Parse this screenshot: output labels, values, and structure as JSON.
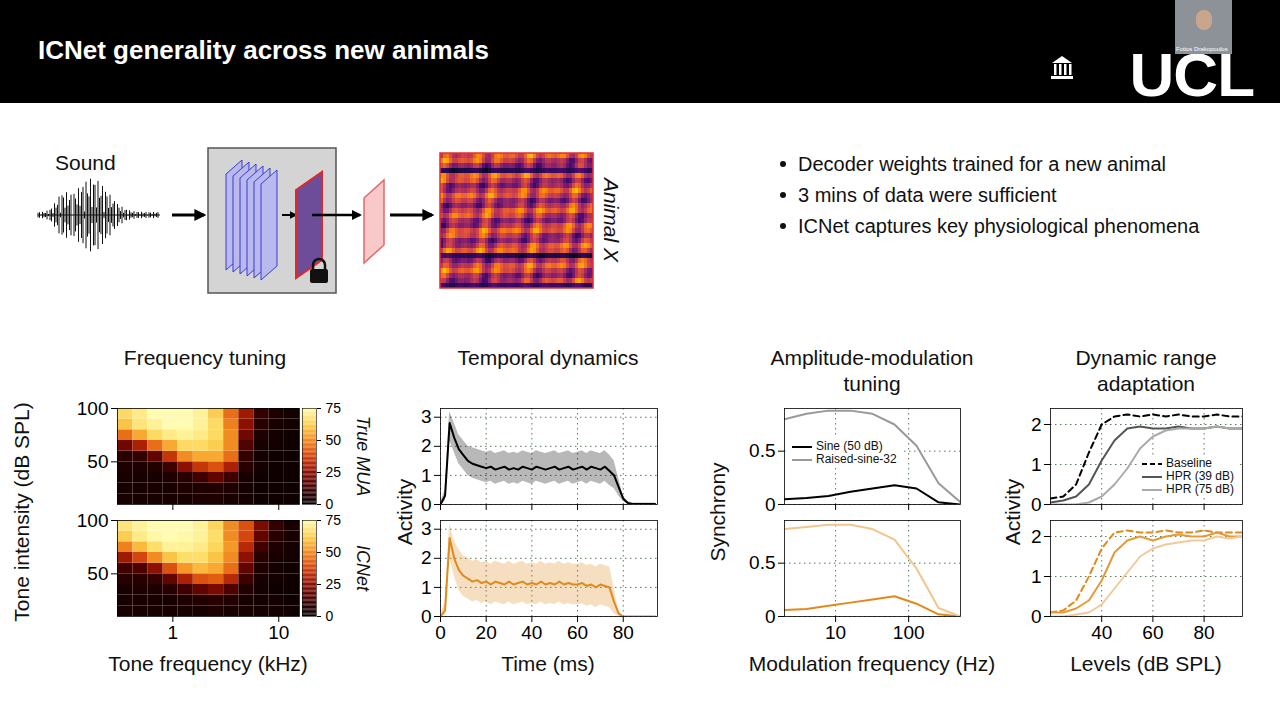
{
  "header": {
    "title": "ICNet generality across new animals",
    "logo": "UCL",
    "presenter": "Fotios Drakopoulos"
  },
  "diagram": {
    "input": "Sound",
    "output": "Animal X"
  },
  "bullets": [
    "Decoder weights trained for a new animal",
    "3 mins of data were sufficient",
    "ICNet captures key physiological phenomena"
  ],
  "chart_data": [
    {
      "type": "heatmap",
      "title": "Frequency tuning",
      "x_label": "Tone frequency (kHz)",
      "y_label": "Tone intensity (dB SPL)",
      "log": "x",
      "xlim": [
        0.3,
        15.7
      ],
      "xticks": [
        1,
        10
      ],
      "ylim": [
        10,
        100
      ],
      "yticks": [
        50,
        100
      ],
      "x_bins": [
        0.3,
        0.42,
        0.58,
        0.81,
        1.12,
        1.56,
        2.17,
        3.02,
        4.2,
        5.84,
        8.12,
        11.3,
        15.7
      ],
      "y_bins": [
        10,
        20,
        30,
        40,
        50,
        60,
        70,
        80,
        90,
        100
      ],
      "colorbar": {
        "range": [
          0,
          75
        ],
        "ticks": [
          0,
          25,
          50,
          75
        ]
      },
      "panels": [
        {
          "name": "True MUA",
          "tick_labels": "y",
          "cells": [
            [
              5,
              5,
              5,
              5,
              5,
              6,
              6,
              5,
              4,
              3,
              3,
              3
            ],
            [
              5,
              5,
              5,
              5,
              6,
              6,
              7,
              6,
              4,
              3,
              3,
              3
            ],
            [
              5,
              5,
              5,
              6,
              8,
              12,
              18,
              12,
              5,
              3,
              3,
              3
            ],
            [
              6,
              6,
              7,
              12,
              25,
              35,
              40,
              30,
              8,
              4,
              3,
              3
            ],
            [
              8,
              10,
              18,
              35,
              50,
              55,
              55,
              45,
              10,
              4,
              3,
              3
            ],
            [
              20,
              30,
              45,
              55,
              65,
              65,
              62,
              50,
              15,
              5,
              4,
              3
            ],
            [
              45,
              55,
              65,
              70,
              72,
              70,
              65,
              50,
              20,
              6,
              4,
              3
            ],
            [
              60,
              68,
              72,
              75,
              75,
              72,
              65,
              48,
              25,
              8,
              5,
              4
            ],
            [
              65,
              70,
              75,
              75,
              75,
              72,
              62,
              45,
              28,
              10,
              6,
              4
            ]
          ]
        },
        {
          "name": "ICNet",
          "cells": [
            [
              5,
              5,
              5,
              5,
              5,
              5,
              6,
              5,
              5,
              4,
              4,
              3
            ],
            [
              5,
              5,
              5,
              5,
              6,
              7,
              8,
              7,
              5,
              4,
              4,
              3
            ],
            [
              5,
              6,
              6,
              8,
              12,
              18,
              22,
              15,
              7,
              4,
              3,
              3
            ],
            [
              8,
              8,
              10,
              18,
              30,
              40,
              42,
              32,
              12,
              5,
              4,
              3
            ],
            [
              12,
              15,
              25,
              40,
              52,
              58,
              55,
              45,
              18,
              6,
              4,
              3
            ],
            [
              28,
              38,
              50,
              60,
              66,
              66,
              60,
              50,
              25,
              8,
              5,
              4
            ],
            [
              48,
              58,
              66,
              72,
              72,
              70,
              64,
              52,
              32,
              12,
              6,
              4
            ],
            [
              62,
              70,
              74,
              75,
              74,
              72,
              66,
              50,
              38,
              18,
              8,
              5
            ],
            [
              68,
              72,
              75,
              75,
              75,
              72,
              64,
              50,
              40,
              22,
              10,
              5
            ]
          ]
        }
      ]
    },
    {
      "type": "line",
      "title": "Temporal dynamics",
      "x_label": "Time (ms)",
      "y_label": "Activity",
      "xlim": [
        0,
        95
      ],
      "xticks": [
        0,
        20,
        40,
        60,
        80
      ],
      "ylim": [
        0,
        3.3
      ],
      "yticks": [
        0,
        1,
        2,
        3
      ],
      "grid": true,
      "x": [
        0,
        2,
        4,
        6,
        8,
        10,
        12,
        14,
        16,
        18,
        20,
        22,
        24,
        26,
        28,
        30,
        32,
        34,
        36,
        38,
        40,
        42,
        44,
        46,
        48,
        50,
        52,
        54,
        56,
        58,
        60,
        62,
        64,
        66,
        68,
        70,
        72,
        74,
        76,
        78,
        80,
        82,
        84,
        86,
        88,
        90,
        92,
        94
      ],
      "panels": [
        {
          "tick_labels": "y",
          "series": [
            {
              "color": "#000000",
              "values": [
                0,
                0.3,
                2.8,
                2.3,
                1.9,
                1.7,
                1.5,
                1.4,
                1.35,
                1.3,
                1.25,
                1.3,
                1.2,
                1.25,
                1.3,
                1.2,
                1.25,
                1.2,
                1.3,
                1.25,
                1.2,
                1.3,
                1.25,
                1.2,
                1.25,
                1.3,
                1.2,
                1.25,
                1.3,
                1.2,
                1.25,
                1.3,
                1.2,
                1.3,
                1.25,
                1.2,
                1.3,
                1.15,
                1.0,
                0.6,
                0.2,
                0.05,
                0.02,
                0.02,
                0.02,
                0.02,
                0.02,
                0.02
              ],
              "lower": [
                0,
                0.1,
                2.2,
                1.8,
                1.4,
                1.2,
                1.0,
                0.9,
                0.85,
                0.8,
                0.75,
                0.8,
                0.7,
                0.75,
                0.8,
                0.7,
                0.75,
                0.7,
                0.8,
                0.75,
                0.7,
                0.8,
                0.75,
                0.7,
                0.75,
                0.8,
                0.7,
                0.75,
                0.8,
                0.7,
                0.75,
                0.8,
                0.7,
                0.8,
                0.75,
                0.7,
                0.8,
                0.65,
                0.55,
                0.3,
                0.1,
                0.02,
                0,
                0,
                0,
                0,
                0,
                0
              ],
              "upper": [
                0.05,
                0.5,
                3.2,
                2.8,
                2.4,
                2.2,
                2.0,
                1.95,
                1.9,
                1.85,
                1.8,
                1.85,
                1.75,
                1.8,
                1.85,
                1.75,
                1.8,
                1.75,
                1.85,
                1.8,
                1.75,
                1.85,
                1.8,
                1.75,
                1.8,
                1.85,
                1.75,
                1.8,
                1.85,
                1.75,
                1.8,
                1.85,
                1.75,
                1.85,
                1.8,
                1.75,
                1.85,
                1.7,
                1.5,
                0.9,
                0.3,
                0.1,
                0.05,
                0.05,
                0.05,
                0.05,
                0.05,
                0.05
              ]
            }
          ]
        },
        {
          "series": [
            {
              "color": "#e08a1c",
              "values": [
                0,
                0.2,
                2.7,
                2.0,
                1.6,
                1.4,
                1.3,
                1.2,
                1.25,
                1.15,
                1.2,
                1.1,
                1.2,
                1.15,
                1.1,
                1.2,
                1.1,
                1.15,
                1.2,
                1.1,
                1.15,
                1.1,
                1.2,
                1.1,
                1.15,
                1.1,
                1.2,
                1.1,
                1.15,
                1.1,
                1.1,
                1.15,
                1.05,
                1.1,
                1.0,
                1.1,
                1.05,
                1.0,
                0.5,
                0.1,
                0,
                0,
                0,
                0,
                0,
                0,
                0,
                0
              ],
              "lower": [
                0,
                0.05,
                2.0,
                1.4,
                0.9,
                0.7,
                0.6,
                0.5,
                0.55,
                0.45,
                0.5,
                0.4,
                0.5,
                0.45,
                0.4,
                0.5,
                0.4,
                0.45,
                0.5,
                0.4,
                0.45,
                0.4,
                0.5,
                0.4,
                0.45,
                0.4,
                0.5,
                0.4,
                0.45,
                0.4,
                0.4,
                0.45,
                0.35,
                0.4,
                0.3,
                0.4,
                0.35,
                0.3,
                0.1,
                0,
                0,
                0,
                0,
                0,
                0,
                0,
                0,
                0
              ],
              "upper": [
                0.05,
                0.5,
                3.2,
                2.6,
                2.3,
                2.1,
                2.0,
                1.9,
                1.95,
                1.85,
                1.9,
                1.8,
                1.9,
                1.85,
                1.8,
                1.9,
                1.8,
                1.85,
                1.9,
                1.8,
                1.85,
                1.8,
                1.9,
                1.8,
                1.85,
                1.8,
                1.9,
                1.8,
                1.85,
                1.8,
                1.8,
                1.85,
                1.75,
                1.8,
                1.7,
                1.8,
                1.75,
                1.7,
                1.0,
                0.2,
                0.02,
                0,
                0,
                0,
                0,
                0,
                0,
                0
              ]
            }
          ]
        }
      ]
    },
    {
      "type": "line",
      "title": "Amplitude-modulation tuning",
      "x_label": "Modulation frequency (Hz)",
      "y_label": "Synchrony",
      "log": "x",
      "xlim": [
        2,
        512
      ],
      "xticks": [
        10,
        100
      ],
      "ylim": [
        0,
        0.9
      ],
      "yticks": [
        0,
        0.5
      ],
      "grid": true,
      "legend": "top-left",
      "x": [
        2,
        4,
        8,
        16,
        32,
        64,
        128,
        256,
        512
      ],
      "panels": [
        {
          "tick_labels": "y",
          "series": [
            {
              "name": "Sine (50 dB)",
              "color": "#000000",
              "values": [
                0.05,
                0.06,
                0.08,
                0.12,
                0.15,
                0.18,
                0.15,
                0.02,
                0
              ]
            },
            {
              "name": "Raised-sine-32",
              "color": "#999999",
              "values": [
                0.8,
                0.85,
                0.88,
                0.88,
                0.85,
                0.75,
                0.55,
                0.2,
                0.02
              ]
            }
          ]
        },
        {
          "series": [
            {
              "color": "#e08a1c",
              "values": [
                0.06,
                0.07,
                0.1,
                0.13,
                0.16,
                0.19,
                0.12,
                0.02,
                0
              ]
            },
            {
              "color": "#f2c58f",
              "values": [
                0.82,
                0.84,
                0.86,
                0.86,
                0.82,
                0.72,
                0.45,
                0.08,
                0
              ]
            }
          ]
        }
      ]
    },
    {
      "type": "line",
      "title": "Dynamic range adaptation",
      "x_label": "Levels (dB SPL)",
      "y_label": "Activity",
      "xlim": [
        20,
        95
      ],
      "xticks": [
        40,
        60,
        80
      ],
      "ylim": [
        0,
        2.4
      ],
      "yticks": [
        0,
        1,
        2
      ],
      "grid": true,
      "legend": "bottom-right",
      "x": [
        20,
        25,
        30,
        35,
        40,
        45,
        50,
        55,
        60,
        65,
        70,
        75,
        80,
        85,
        90,
        95
      ],
      "panels": [
        {
          "tick_labels": "y",
          "series": [
            {
              "name": "Baseline",
              "color": "#000000",
              "line_style": "dashed",
              "values": [
                0.15,
                0.2,
                0.5,
                1.3,
                2.0,
                2.2,
                2.25,
                2.2,
                2.25,
                2.2,
                2.25,
                2.2,
                2.2,
                2.25,
                2.2,
                2.2
              ]
            },
            {
              "name": "HPR (39 dB)",
              "color": "#555555",
              "line_style": "solid",
              "values": [
                0.05,
                0.1,
                0.2,
                0.5,
                1.1,
                1.6,
                1.9,
                1.95,
                1.9,
                1.9,
                1.95,
                1.9,
                1.9,
                1.95,
                1.9,
                1.9
              ]
            },
            {
              "name": "HPR (75 dB)",
              "color": "#aaaaaa",
              "line_style": "solid",
              "values": [
                0,
                0,
                0,
                0.05,
                0.2,
                0.5,
                0.9,
                1.4,
                1.7,
                1.85,
                1.9,
                1.9,
                1.9,
                1.95,
                1.9,
                1.9
              ]
            }
          ]
        },
        {
          "series": [
            {
              "color": "#e08a1c",
              "line_style": "dashed",
              "values": [
                0.1,
                0.15,
                0.4,
                1.0,
                1.7,
                2.1,
                2.15,
                2.1,
                2.1,
                2.15,
                2.1,
                2.1,
                2.15,
                2.1,
                2.1,
                2.1
              ]
            },
            {
              "color": "#e59a3a",
              "line_style": "solid",
              "values": [
                0.1,
                0.1,
                0.2,
                0.4,
                0.9,
                1.6,
                1.9,
                2.0,
                1.9,
                2.0,
                2.05,
                2.0,
                2.0,
                2.1,
                2.0,
                2.0
              ]
            },
            {
              "color": "#f3c999",
              "line_style": "solid",
              "values": [
                0,
                0,
                0.05,
                0.1,
                0.3,
                0.7,
                1.1,
                1.5,
                1.7,
                1.8,
                1.85,
                1.9,
                1.9,
                2.0,
                1.95,
                2.0
              ]
            }
          ]
        }
      ]
    }
  ]
}
